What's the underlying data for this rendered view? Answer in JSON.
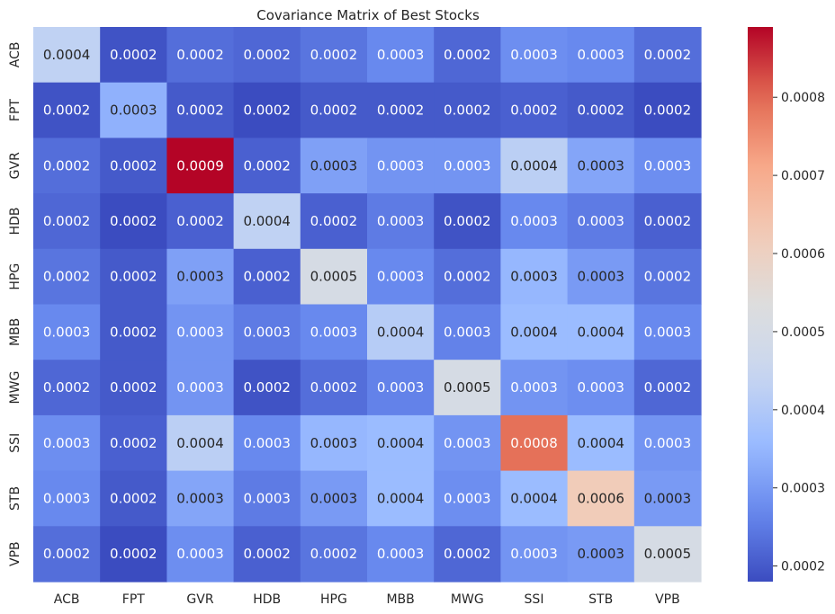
{
  "chart_data": {
    "type": "heatmap",
    "title": "Covariance Matrix of Best Stocks",
    "x_labels": [
      "ACB",
      "FPT",
      "GVR",
      "HDB",
      "HPG",
      "MBB",
      "MWG",
      "SSI",
      "STB",
      "VPB"
    ],
    "y_labels": [
      "ACB",
      "FPT",
      "GVR",
      "HDB",
      "HPG",
      "MBB",
      "MWG",
      "SSI",
      "STB",
      "VPB"
    ],
    "values": [
      [
        0.00043,
        0.00019,
        0.00023,
        0.00022,
        0.00024,
        0.00027,
        0.00022,
        0.00028,
        0.00027,
        0.00023
      ],
      [
        0.00019,
        0.00034,
        0.0002,
        0.00018,
        0.0002,
        0.0002,
        0.0002,
        0.00021,
        0.0002,
        0.00018
      ],
      [
        0.00023,
        0.0002,
        0.00089,
        0.00021,
        0.00031,
        0.00029,
        0.00029,
        0.00042,
        0.00032,
        0.00028
      ],
      [
        0.00022,
        0.00018,
        0.00021,
        0.00043,
        0.00021,
        0.00025,
        0.00019,
        0.00027,
        0.00025,
        0.00021
      ],
      [
        0.00024,
        0.0002,
        0.00031,
        0.00021,
        0.0005,
        0.00027,
        0.00023,
        0.00035,
        0.0003,
        0.00024
      ],
      [
        0.00027,
        0.0002,
        0.00029,
        0.00025,
        0.00027,
        0.00041,
        0.00026,
        0.00036,
        0.00036,
        0.00027
      ],
      [
        0.00022,
        0.0002,
        0.00029,
        0.00019,
        0.00023,
        0.00026,
        0.0005,
        0.00029,
        0.00028,
        0.00022
      ],
      [
        0.00028,
        0.00021,
        0.00042,
        0.00027,
        0.00035,
        0.00036,
        0.00029,
        0.00079,
        0.00036,
        0.00029
      ],
      [
        0.00027,
        0.0002,
        0.00032,
        0.00025,
        0.0003,
        0.00036,
        0.00028,
        0.00036,
        0.00062,
        0.0003
      ],
      [
        0.00023,
        0.00018,
        0.00028,
        0.00021,
        0.00024,
        0.00027,
        0.00022,
        0.00029,
        0.0003,
        0.0005
      ]
    ],
    "value_format": "4 decimals",
    "colormap": "coolwarm",
    "colormap_stops": [
      "#3b4cc0",
      "#6788ee",
      "#9abbff",
      "#c9d7f0",
      "#dddddd",
      "#f2cbb7",
      "#f7a889",
      "#e26952",
      "#b40426"
    ],
    "vmin": 0.00018,
    "vmax": 0.00089,
    "colorbar_ticks": [
      0.0002,
      0.0003,
      0.0004,
      0.0005,
      0.0006,
      0.0007,
      0.0008
    ],
    "colorbar_tick_labels": [
      "0.0002",
      "0.0003",
      "0.0004",
      "0.0005",
      "0.0006",
      "0.0007",
      "0.0008"
    ]
  }
}
